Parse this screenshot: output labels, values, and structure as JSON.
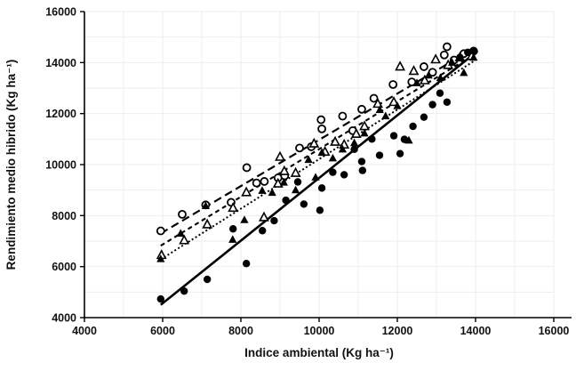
{
  "figure": {
    "background": "#ffffff",
    "ink_color": "#000000",
    "grid_color": "#ededed"
  },
  "chart_data": {
    "type": "scatter",
    "title": "",
    "xlabel": "Indice ambiental (Kg ha⁻¹)",
    "ylabel": "Rendimiento medio hibrido (Kg ha⁻¹)",
    "xlim": [
      4000,
      16000
    ],
    "ylim": [
      4000,
      16000
    ],
    "xticks": [
      4000,
      6000,
      8000,
      10000,
      12000,
      14000,
      16000
    ],
    "yticks": [
      4000,
      6000,
      8000,
      10000,
      12000,
      14000,
      16000
    ],
    "grid": {
      "on": true,
      "interval": 1000
    },
    "legend": "none",
    "series": [
      {
        "name": "open-circle-hybrid",
        "marker": "circle-open",
        "line_style": "long-dash",
        "trendline": {
          "x": [
            5950,
            13950
          ],
          "y": [
            7300,
            14550
          ]
        },
        "points": [
          [
            5950,
            7400
          ],
          [
            6500,
            8050
          ],
          [
            7100,
            8420
          ],
          [
            7750,
            8520
          ],
          [
            8150,
            9880
          ],
          [
            8400,
            9280
          ],
          [
            8600,
            9340
          ],
          [
            8950,
            9480
          ],
          [
            9120,
            9560
          ],
          [
            9500,
            10650
          ],
          [
            9800,
            10700
          ],
          [
            10050,
            11760
          ],
          [
            10070,
            11400
          ],
          [
            10600,
            11900
          ],
          [
            10860,
            11330
          ],
          [
            11090,
            12170
          ],
          [
            11400,
            12600
          ],
          [
            11890,
            13140
          ],
          [
            12370,
            13240
          ],
          [
            12680,
            13840
          ],
          [
            12900,
            13620
          ],
          [
            13200,
            14300
          ],
          [
            13270,
            14620
          ],
          [
            13450,
            14100
          ],
          [
            13700,
            14350
          ],
          [
            13950,
            14450
          ]
        ]
      },
      {
        "name": "open-triangle-hybrid",
        "marker": "triangle-open",
        "line_style": "short-dash",
        "trendline": {
          "x": [
            5950,
            13950
          ],
          "y": [
            6820,
            14300
          ]
        },
        "points": [
          [
            5970,
            6450
          ],
          [
            6550,
            7030
          ],
          [
            7140,
            7650
          ],
          [
            7800,
            8300
          ],
          [
            8140,
            8910
          ],
          [
            8590,
            7930
          ],
          [
            8950,
            9250
          ],
          [
            9000,
            10300
          ],
          [
            9110,
            9740
          ],
          [
            9400,
            9670
          ],
          [
            9870,
            10820
          ],
          [
            10150,
            10500
          ],
          [
            10410,
            10890
          ],
          [
            10640,
            10780
          ],
          [
            10950,
            11200
          ],
          [
            11160,
            11500
          ],
          [
            11500,
            12380
          ],
          [
            11910,
            12450
          ],
          [
            12070,
            13840
          ],
          [
            12420,
            13670
          ],
          [
            12700,
            13300
          ],
          [
            12980,
            14120
          ],
          [
            13300,
            13900
          ],
          [
            13600,
            14200
          ],
          [
            13900,
            14250
          ]
        ]
      },
      {
        "name": "filled-triangle-hybrid",
        "marker": "triangle-filled",
        "line_style": "dotted",
        "trendline": {
          "x": [
            5950,
            13950
          ],
          "y": [
            6280,
            14050
          ]
        },
        "points": [
          [
            5950,
            6300
          ],
          [
            6460,
            7300
          ],
          [
            7100,
            8380
          ],
          [
            7790,
            7060
          ],
          [
            8090,
            7830
          ],
          [
            8545,
            8980
          ],
          [
            8800,
            8900
          ],
          [
            9100,
            9300
          ],
          [
            9400,
            9000
          ],
          [
            9730,
            10190
          ],
          [
            9910,
            9500
          ],
          [
            10070,
            10470
          ],
          [
            10350,
            10250
          ],
          [
            10600,
            10600
          ],
          [
            10900,
            10850
          ],
          [
            11160,
            11230
          ],
          [
            11550,
            12150
          ],
          [
            11700,
            11900
          ],
          [
            12000,
            12300
          ],
          [
            12295,
            10950
          ],
          [
            12500,
            13200
          ],
          [
            12800,
            13500
          ],
          [
            13100,
            13400
          ],
          [
            13400,
            14000
          ],
          [
            13700,
            13600
          ],
          [
            13950,
            14200
          ]
        ]
      },
      {
        "name": "filled-circle-hybrid",
        "marker": "circle-filled",
        "line_style": "solid",
        "trendline": {
          "x": [
            5950,
            14050
          ],
          "y": [
            4500,
            14450
          ]
        },
        "points": [
          [
            5950,
            4730
          ],
          [
            6550,
            5040
          ],
          [
            7140,
            5500
          ],
          [
            7800,
            7480
          ],
          [
            8140,
            6120
          ],
          [
            8550,
            7410
          ],
          [
            8850,
            7800
          ],
          [
            9150,
            8600
          ],
          [
            9455,
            9320
          ],
          [
            9610,
            8450
          ],
          [
            10020,
            8210
          ],
          [
            10070,
            9080
          ],
          [
            10350,
            9700
          ],
          [
            10640,
            9600
          ],
          [
            10900,
            10600
          ],
          [
            11090,
            10120
          ],
          [
            11110,
            9770
          ],
          [
            11350,
            11000
          ],
          [
            11545,
            10365
          ],
          [
            11910,
            11130
          ],
          [
            12070,
            10430
          ],
          [
            12180,
            10990
          ],
          [
            12400,
            11500
          ],
          [
            12680,
            11860
          ],
          [
            12900,
            12350
          ],
          [
            13090,
            12800
          ],
          [
            13270,
            12450
          ],
          [
            13600,
            14200
          ],
          [
            13800,
            14400
          ],
          [
            13950,
            14450
          ]
        ]
      }
    ]
  }
}
